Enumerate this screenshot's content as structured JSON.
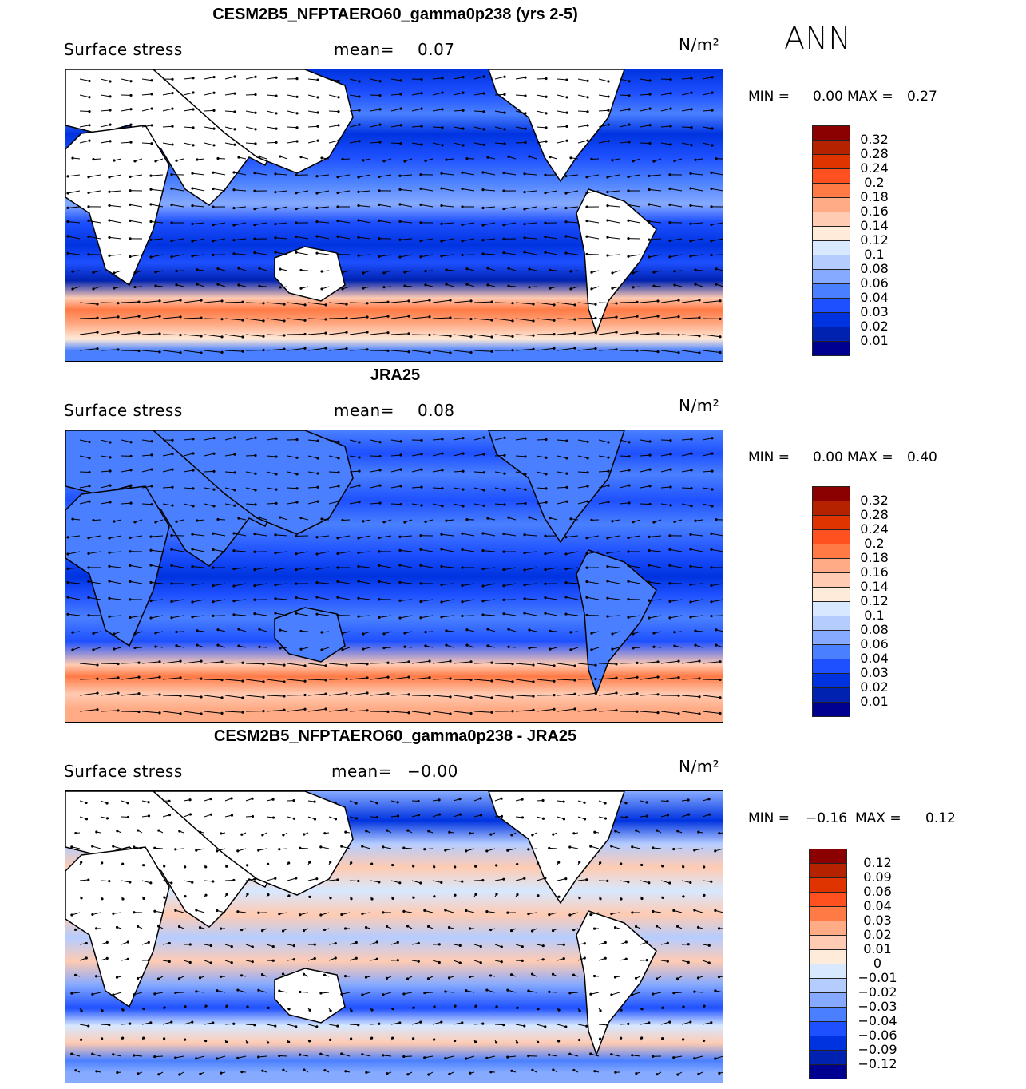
{
  "season": "ANN",
  "panels": [
    {
      "title": "CESM2B5_NFPTAERO60_gamma0p238 (yrs 2-5)",
      "variable": "Surface stress",
      "mean_label": "mean=",
      "mean_value": "0.07",
      "units": "N/m²",
      "min_label": "MIN =",
      "min_value": "0.00",
      "max_label": "MAX =",
      "max_value": "0.27",
      "colorbar_labels": [
        "0.32",
        "0.28",
        "0.24",
        "0.2",
        "0.18",
        "0.16",
        "0.14",
        "0.12",
        "0.1",
        "0.08",
        "0.06",
        "0.04",
        "0.03",
        "0.02",
        "0.01"
      ],
      "colorbar_colors": [
        "#8b0000",
        "#b52200",
        "#e03400",
        "#ff5020",
        "#ff7a45",
        "#ffab85",
        "#ffcbb2",
        "#ffebda",
        "#d7e8ff",
        "#b5ccff",
        "#86aaff",
        "#4a80ff",
        "#1e50ff",
        "#0033e0",
        "#0022b0",
        "#000090"
      ],
      "style": "model"
    },
    {
      "title": "JRA25",
      "variable": "Surface stress",
      "mean_label": "mean=",
      "mean_value": "0.08",
      "units": "N/m²",
      "min_label": "MIN =",
      "min_value": "0.00",
      "max_label": "MAX =",
      "max_value": "0.40",
      "colorbar_labels": [
        "0.32",
        "0.28",
        "0.24",
        "0.2",
        "0.18",
        "0.16",
        "0.14",
        "0.12",
        "0.1",
        "0.08",
        "0.06",
        "0.04",
        "0.03",
        "0.02",
        "0.01"
      ],
      "colorbar_colors": [
        "#8b0000",
        "#b52200",
        "#e03400",
        "#ff5020",
        "#ff7a45",
        "#ffab85",
        "#ffcbb2",
        "#ffebda",
        "#d7e8ff",
        "#b5ccff",
        "#86aaff",
        "#4a80ff",
        "#1e50ff",
        "#0033e0",
        "#0022b0",
        "#000090"
      ],
      "style": "obs"
    },
    {
      "title": "CESM2B5_NFPTAERO60_gamma0p238 - JRA25",
      "variable": "Surface stress",
      "mean_label": "mean=",
      "mean_value": "−0.00",
      "units": "N/m²",
      "min_label": "MIN =",
      "min_value": "−0.16",
      "max_label": "MAX =",
      "max_value": "0.12",
      "colorbar_labels": [
        "0.12",
        "0.09",
        "0.06",
        "0.04",
        "0.03",
        "0.02",
        "0.01",
        "0",
        "−0.01",
        "−0.02",
        "−0.03",
        "−0.04",
        "−0.06",
        "−0.09",
        "−0.12"
      ],
      "colorbar_colors": [
        "#8b0000",
        "#b52200",
        "#e03400",
        "#ff5020",
        "#ff7a45",
        "#ffab85",
        "#ffcbb2",
        "#ffebda",
        "#d7e8ff",
        "#b5ccff",
        "#86aaff",
        "#4a80ff",
        "#1e50ff",
        "#0033e0",
        "#0022b0",
        "#000090"
      ],
      "style": "diff"
    }
  ]
}
